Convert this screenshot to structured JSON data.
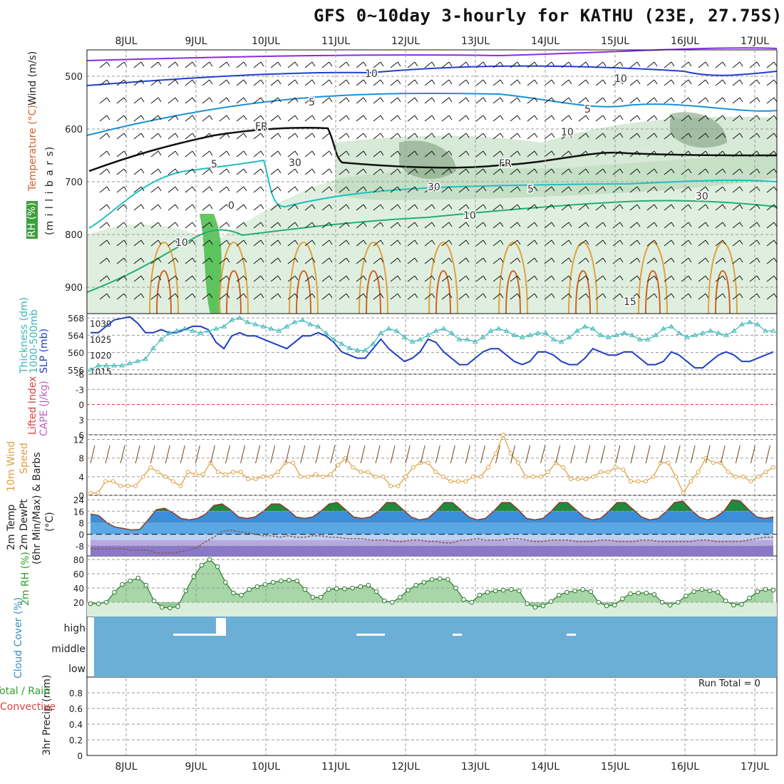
{
  "title": "GFS 0~10day 3-hourly for KATHU (23E, 27.75S)",
  "colors": {
    "grid": "#9a9a9a",
    "wind_speed_line": "#e0a040",
    "slp": "#1f3fbf",
    "thickness": "#3ab8b8",
    "temp_band_blue": "#3d78d8",
    "temp_band_purple": "#a89ad8",
    "rh_fill": "#5fb55f",
    "cloud": "#6baed6",
    "rh_green_shade": "#b8dbb8",
    "li_zero": "#e04040"
  },
  "chart_data": [
    {
      "id": "upper_air",
      "type": "contour",
      "ylabel": "(m i l l i b a r s)",
      "legend_labels": [
        "Wind (m/s)",
        "Temperature (°C)",
        "RH (%)"
      ],
      "ylim": [
        950,
        450
      ],
      "yticks": [
        "500",
        "600",
        "700",
        "800",
        "900"
      ],
      "contour_labels": [
        "10",
        "5",
        "5",
        "FR",
        "FR",
        "5",
        "0",
        "10",
        "10",
        "5",
        "10",
        "10",
        "30",
        "30",
        "30",
        "15"
      ]
    },
    {
      "id": "slp_thickness",
      "type": "line",
      "ylabel_left": "Thickness (dm)",
      "ylabel_left2": "1000-500mb",
      "ylabel_right": "SLP (mb)",
      "left_ticks": [
        "568",
        "564",
        "560",
        "556"
      ],
      "right_ticks": [
        "1030",
        "1025",
        "1020",
        "1015"
      ],
      "ylim_left": [
        555,
        569
      ],
      "ylim_right": [
        1014,
        1033
      ],
      "series": [
        {
          "name": "SLP (mb)",
          "values": [
            1027,
            1027,
            1029,
            1031,
            1031.5,
            1032,
            1030,
            1027,
            1027,
            1028,
            1027,
            1027,
            1028,
            1029,
            1029,
            1028,
            1024,
            1022,
            1026,
            1027,
            1026,
            1026,
            1025,
            1024,
            1023,
            1022,
            1024,
            1026,
            1026,
            1027,
            1026,
            1024,
            1021,
            1020,
            1019,
            1019,
            1022,
            1025,
            1022,
            1020,
            1018,
            1019,
            1021,
            1025,
            1024,
            1021,
            1019,
            1017,
            1017,
            1019,
            1021,
            1022,
            1022,
            1020,
            1018,
            1017,
            1018,
            1021,
            1021,
            1020,
            1018,
            1017,
            1017,
            1019,
            1022,
            1021,
            1020,
            1020,
            1021,
            1021,
            1019,
            1017,
            1017,
            1018,
            1021,
            1020,
            1018,
            1016,
            1016,
            1018,
            1020,
            1021,
            1020,
            1018,
            1018,
            1019,
            1020,
            1021
          ]
        },
        {
          "name": "Thickness (dm)",
          "values": [
            556,
            557,
            557,
            557,
            557,
            557.5,
            558,
            558.5,
            561,
            563,
            564.5,
            565,
            565.5,
            565,
            564.5,
            565,
            565.5,
            566,
            567.5,
            568,
            567,
            566.5,
            566,
            565.5,
            565,
            566,
            567,
            567.5,
            566.5,
            566,
            564.5,
            563,
            562,
            561,
            560.5,
            560.5,
            562,
            564.5,
            565.5,
            565,
            563.5,
            562.5,
            563,
            564,
            565,
            565.5,
            564.5,
            563,
            563,
            562.5,
            563.5,
            565,
            565.5,
            565,
            564,
            563.5,
            564,
            564.5,
            564.5,
            563,
            562.5,
            563.5,
            565,
            566,
            565.5,
            564,
            563.5,
            564,
            564.5,
            564,
            563,
            563,
            564,
            565.5,
            566,
            564.5,
            563.5,
            564,
            564.5,
            565,
            564.5,
            564,
            565,
            566.5,
            567,
            566.5,
            565,
            565
          ]
        }
      ]
    },
    {
      "id": "instability",
      "type": "line",
      "ylabel_left": "Lifted Index",
      "ylabel_right": "CAPE (J/kg)",
      "left_ticks": [
        "-6",
        "-3",
        "0",
        "3",
        "6"
      ],
      "ylim": [
        -6,
        6
      ]
    },
    {
      "id": "wind10m",
      "type": "line",
      "ylabel": "10m Wind Speed & Barbs (m/s)",
      "ylabel_lines": [
        "10m Wind",
        "Speed",
        "& Barbs"
      ],
      "yticks": [
        "12",
        "8",
        "4",
        "0"
      ],
      "ylim": [
        0,
        13
      ],
      "series": [
        {
          "name": "10m Wind Speed",
          "values": [
            0.5,
            0.5,
            3,
            3,
            2,
            2,
            2,
            4,
            6,
            5,
            4,
            3,
            2,
            5,
            4.5,
            4.5,
            7,
            5,
            4.5,
            5,
            5,
            3.5,
            3.5,
            4,
            4,
            5,
            7,
            7,
            4,
            4,
            4.5,
            4,
            4.5,
            6.5,
            8,
            6,
            5,
            5,
            4,
            4,
            2,
            2,
            4,
            6,
            7,
            7,
            5,
            4,
            3,
            3,
            3,
            4,
            4,
            6,
            9,
            13,
            9,
            7,
            4,
            4,
            4,
            5,
            7,
            6,
            3.5,
            3.5,
            3.5,
            4,
            5,
            5,
            6,
            5.5,
            3,
            3,
            3,
            4,
            7,
            7,
            4,
            0.5,
            3,
            5,
            8,
            7,
            7,
            5,
            4,
            4,
            3,
            4,
            5,
            6
          ]
        }
      ]
    },
    {
      "id": "temp2m",
      "type": "area",
      "ylabel": "2m Temp 2m DewPt (6hr Min/Max) (°C)",
      "ylabel_lines": [
        "2m Temp",
        "2m DewPt",
        "(6hr Min/Max)",
        "(°C)"
      ],
      "yticks": [
        "24",
        "16",
        "8",
        "0",
        "-8"
      ],
      "ylim": [
        -15,
        27
      ],
      "series": [
        {
          "name": "2m Temp",
          "values": [
            14,
            13,
            8,
            5,
            4,
            3,
            3.5,
            10,
            17,
            18,
            15,
            11,
            10,
            11,
            14,
            20,
            21,
            17,
            12,
            11,
            12,
            16,
            21,
            21,
            17,
            12,
            11,
            12,
            16,
            21,
            22,
            17,
            12,
            11,
            12,
            16,
            22,
            22,
            17,
            12,
            10,
            11,
            16,
            22,
            22,
            17,
            12,
            10,
            11,
            16,
            22,
            22,
            17,
            11,
            10,
            11,
            16,
            22,
            22,
            17,
            12,
            10,
            11,
            16,
            22,
            22,
            17,
            12,
            10,
            11,
            16,
            22,
            23,
            17,
            12,
            10,
            12,
            16,
            24,
            23,
            17,
            12,
            11,
            12
          ]
        },
        {
          "name": "2m DewPt",
          "values": [
            -10,
            -10,
            -10,
            -10,
            -10,
            -11,
            -11,
            -11,
            -13,
            -13,
            -13,
            -12,
            -11,
            -9,
            -5,
            -2,
            2,
            3,
            2,
            1,
            0,
            -1,
            -1,
            -2,
            -1,
            -2,
            -2,
            -1,
            -1,
            -2,
            -2,
            -3,
            -3,
            -3,
            -4,
            -4,
            -4,
            -5,
            -5,
            -4,
            -4,
            -5,
            -5,
            -6,
            -6,
            -4,
            -4,
            -3,
            -4,
            -4,
            -4,
            -3,
            -3,
            -4,
            -5,
            -5,
            -4,
            -4,
            -4,
            -5,
            -5,
            -5,
            -4,
            -4,
            -5,
            -5,
            -5,
            -4,
            -4,
            -5,
            -5,
            -5,
            -5,
            -5,
            -4,
            -4,
            -5,
            -5,
            -5,
            -5,
            -4,
            -3,
            -2,
            -2
          ]
        }
      ]
    },
    {
      "id": "rh2m",
      "type": "area",
      "ylabel": "2m RH (%)",
      "yticks": [
        "80",
        "60",
        "40",
        "20"
      ],
      "ylim": [
        0,
        85
      ],
      "series": [
        {
          "name": "2m RH",
          "values": [
            18,
            18,
            20,
            34,
            45,
            50,
            54,
            44,
            22,
            13,
            12,
            14,
            36,
            56,
            72,
            80,
            70,
            48,
            33,
            30,
            38,
            42,
            45,
            48,
            50,
            51,
            50,
            38,
            27,
            27,
            38,
            39,
            39,
            40,
            42,
            44,
            35,
            22,
            20,
            27,
            37,
            44,
            48,
            52,
            53,
            52,
            40,
            24,
            20,
            30,
            34,
            36,
            37,
            38,
            36,
            18,
            13,
            15,
            21,
            30,
            34,
            36,
            38,
            35,
            20,
            15,
            16,
            25,
            32,
            33,
            33,
            31,
            20,
            16,
            20,
            29,
            35,
            38,
            36,
            34,
            22,
            16,
            17,
            26,
            35,
            38,
            37
          ]
        }
      ]
    },
    {
      "id": "cloud",
      "type": "heatmap",
      "ylabel": "Cloud Cover (%)",
      "levels": [
        "high",
        "middle",
        "low"
      ]
    },
    {
      "id": "precip",
      "type": "bar",
      "ylabel": "3hr Precip (mm)",
      "legend_labels": [
        "Total / Rain",
        "Convective"
      ],
      "yticks": [
        "0.8",
        "0.6",
        "0.4",
        "0.2",
        "0"
      ],
      "ylim": [
        0,
        1
      ],
      "run_total": "Run Total = 0"
    }
  ],
  "x_axis": {
    "labels": [
      "8JUL",
      "9JUL",
      "10JUL",
      "11JUL",
      "12JUL",
      "13JUL",
      "14JUL",
      "15JUL",
      "16JUL",
      "17JUL"
    ]
  }
}
